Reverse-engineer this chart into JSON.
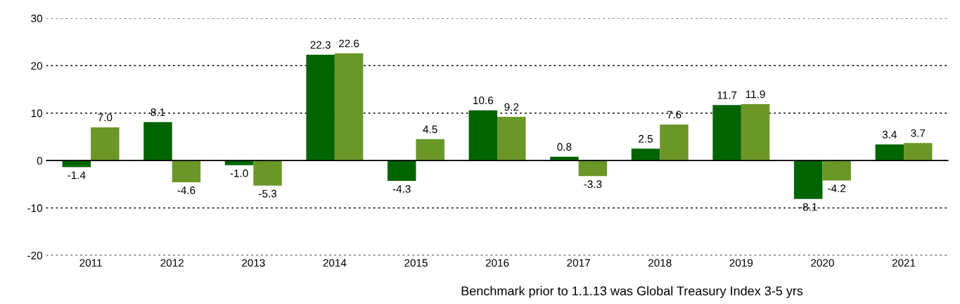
{
  "chart_data": {
    "type": "bar",
    "categories": [
      "2011",
      "2012",
      "2013",
      "2014",
      "2015",
      "2016",
      "2017",
      "2018",
      "2019",
      "2020",
      "2021"
    ],
    "series": [
      {
        "color": "#006400",
        "values": [
          -1.4,
          8.1,
          -1.0,
          22.3,
          -4.3,
          10.6,
          0.8,
          2.5,
          11.7,
          -8.1,
          3.4
        ],
        "value_labels": [
          "-1.4",
          "8.1",
          "-1.0",
          "22.3",
          "-4.3",
          "10.6",
          "0.8",
          "2.5",
          "11.7",
          "-8.1",
          "3.4"
        ]
      },
      {
        "color": "#6b9628",
        "values": [
          7.0,
          -4.6,
          -5.3,
          22.6,
          4.5,
          9.2,
          -3.3,
          7.6,
          11.9,
          -4.2,
          3.7
        ],
        "value_labels": [
          "7.0",
          "-4.6",
          "-5.3",
          "22.6",
          "4.5",
          "9.2",
          "-3.3",
          "7.6",
          "11.9",
          "-4.2",
          "3.7"
        ]
      }
    ],
    "ylim": [
      -20,
      30
    ],
    "yticks": [
      -20,
      -10,
      0,
      10,
      20,
      30
    ],
    "grid": "y",
    "ref_lines": [
      {
        "axis": "y",
        "value": 0,
        "color": "#000000",
        "line_style": "solid"
      }
    ],
    "annotations": [
      "Benchmark prior to 1.1.13 was Global Treasury Index 3-5 yrs"
    ]
  }
}
